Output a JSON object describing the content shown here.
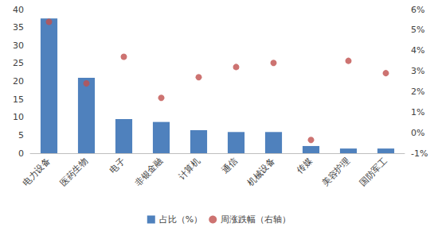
{
  "chart_data": {
    "type": "bar",
    "categories": [
      "电力设备",
      "医药生物",
      "电子",
      "非银金融",
      "计算机",
      "通信",
      "机械设备",
      "传媒",
      "美容护理",
      "国防军工"
    ],
    "series": [
      {
        "name": "占比（%）",
        "type": "bar",
        "color": "#4f81bd",
        "values": [
          37.5,
          21.0,
          9.5,
          8.7,
          6.4,
          5.9,
          5.9,
          2.0,
          1.3,
          1.3
        ]
      },
      {
        "name": "周涨跌幅（右轴）",
        "type": "scatter",
        "axis": "y2",
        "color": "#c0504d",
        "marker": "circle",
        "values": [
          5.4,
          2.4,
          3.7,
          1.7,
          2.7,
          3.2,
          3.4,
          -0.35,
          3.5,
          2.9
        ]
      }
    ],
    "ylim": [
      0,
      40
    ],
    "yticks": [
      0,
      5,
      10,
      15,
      20,
      25,
      30,
      35,
      40
    ],
    "y2lim": [
      -1,
      6
    ],
    "y2ticks": [
      {
        "value": -1,
        "label": "-1%"
      },
      {
        "value": 0,
        "label": "0%"
      },
      {
        "value": 1,
        "label": "1%"
      },
      {
        "value": 2,
        "label": "2%"
      },
      {
        "value": 3,
        "label": "3%"
      },
      {
        "value": 4,
        "label": "4%"
      },
      {
        "value": 5,
        "label": "5%"
      },
      {
        "value": 6,
        "label": "6%"
      }
    ],
    "legend": "bottom",
    "grid": false
  }
}
